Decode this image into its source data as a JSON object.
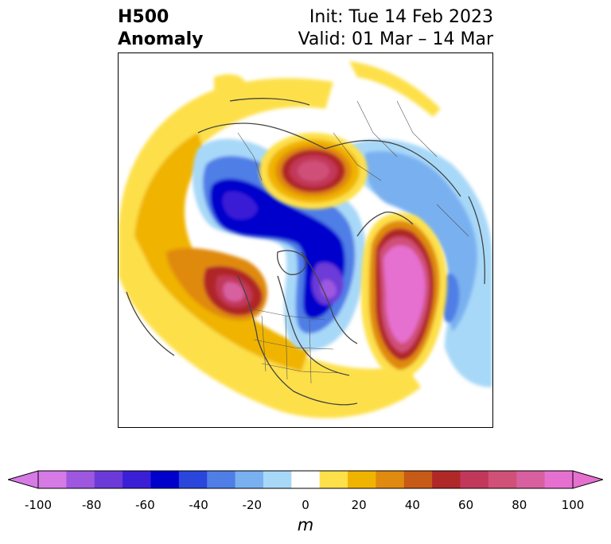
{
  "header": {
    "title_line1": "H500",
    "title_line2": "Anomaly",
    "init_text": "Init: Tue 14 Feb 2023",
    "valid_text": "Valid: 01 Mar – 14 Mar"
  },
  "colorbar": {
    "unit": "m",
    "ticks": [
      "-100",
      "-80",
      "-60",
      "-40",
      "-20",
      "0",
      "20",
      "40",
      "60",
      "80",
      "100"
    ],
    "levels": [
      -100,
      -90,
      -80,
      -70,
      -60,
      -50,
      -40,
      -30,
      -20,
      -10,
      10,
      20,
      30,
      40,
      50,
      60,
      70,
      80,
      90,
      100
    ],
    "colors": [
      "#d67ae6",
      "#9e58e0",
      "#6c3ad8",
      "#3a1fd6",
      "#0000cc",
      "#2a46dc",
      "#4f7ee6",
      "#79b0f0",
      "#a8d8f8",
      "#ffffff",
      "#fde04a",
      "#f0b400",
      "#e08a10",
      "#c85a18",
      "#b02828",
      "#c2385a",
      "#d05078",
      "#d860a0",
      "#e670d0"
    ],
    "extend_min_color": "#d67ae6",
    "extend_max_color": "#e670d0"
  },
  "map": {
    "projection": "north-polar-stereographic",
    "coastline_color": "#444444"
  }
}
